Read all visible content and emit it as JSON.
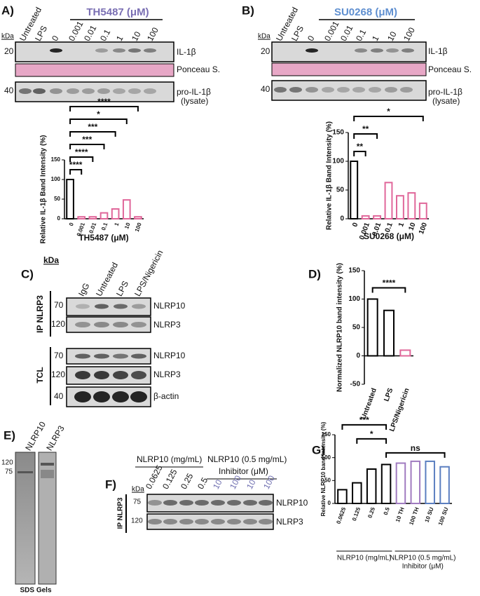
{
  "panels": {
    "a": "A)",
    "b": "B)",
    "c": "C)",
    "d": "D)",
    "e": "E)",
    "f": "F)",
    "g": "G)"
  },
  "blot_a": {
    "title": "TH5487 (μM)",
    "title_color": "#7a6fb3",
    "lanes": [
      "Untreated",
      "LPS",
      "0",
      "0.001",
      "0.01",
      "0.1",
      "1",
      "10",
      "100"
    ],
    "kda": "kDa",
    "markers": [
      "20",
      "40"
    ],
    "labels": [
      "IL-1β",
      "Ponceau S.",
      "pro-IL-1β",
      "(lysate)"
    ]
  },
  "blot_b": {
    "title": "SU0268 (μM)",
    "title_color": "#5f8fd0",
    "lanes": [
      "Untreated",
      "LPS",
      "0",
      "0.001",
      "0.01",
      "0.1",
      "1",
      "10",
      "100"
    ],
    "kda": "kDa",
    "markers": [
      "20",
      "40"
    ],
    "labels": [
      "IL-1β",
      "Ponceau S.",
      "pro-IL-1β",
      "(lysate)"
    ]
  },
  "blot_c": {
    "lanes": [
      "IgG",
      "Untreated",
      "LPS",
      "LPS/Nigericin"
    ],
    "kda": "kDa",
    "ip": "IP NLRP3",
    "tcl": "TCL",
    "markers": [
      "70",
      "120",
      "70",
      "120",
      "40"
    ],
    "labels": [
      "NLRP10",
      "NLRP3",
      "NLRP10",
      "NLRP3",
      "β-actin"
    ]
  },
  "gel_e": {
    "lanes": [
      "NLRP10",
      "NLRP3"
    ],
    "markers": [
      "120",
      "75"
    ],
    "caption": "SDS Gels"
  },
  "blot_f": {
    "groups": [
      "NLRP10 (mg/mL)",
      "NLRP10 (0.5 mg/mL)",
      "Inhibitor (μM)"
    ],
    "lanes": [
      "0.0625",
      "0.125",
      "0.25",
      "0.5",
      "10",
      "100",
      "10",
      "100"
    ],
    "lane_colors": [
      "#111",
      "#111",
      "#111",
      "#111",
      "#6f6fb0",
      "#6f6fb0",
      "#6f6fb0",
      "#6f6fb0"
    ],
    "kda": "kDa",
    "markers": [
      "75",
      "120"
    ],
    "labels": [
      "NLRP10",
      "NLRP3"
    ],
    "ip": "IP NLRP3"
  },
  "chart_data": [
    {
      "type": "bar",
      "y_label": "Relative IL-1β  Band Intensity (%)",
      "x_label": "TH5487 (μM)",
      "categories": [
        "0",
        "0.001",
        "0.01",
        "0.1",
        "1",
        "10",
        "100"
      ],
      "values": [
        100,
        5,
        5,
        15,
        25,
        48,
        5
      ],
      "colors": [
        "#000",
        "#e0679a",
        "#e0679a",
        "#e0679a",
        "#e0679a",
        "#e0679a",
        "#e0679a"
      ],
      "ylim": [
        0,
        150
      ],
      "yticks": [
        0,
        50,
        100,
        150
      ],
      "significance": [
        {
          "label": "****",
          "from": "0",
          "to": "0.001"
        },
        {
          "label": "****",
          "from": "0",
          "to": "0.01"
        },
        {
          "label": "***",
          "from": "0",
          "to": "0.1"
        },
        {
          "label": "***",
          "from": "0",
          "to": "1"
        },
        {
          "label": "*",
          "from": "0",
          "to": "10"
        },
        {
          "label": "****",
          "from": "0",
          "to": "100"
        }
      ]
    },
    {
      "type": "bar",
      "y_label": "Relative IL-1β Band Intensity (%)",
      "x_label": "SU0268 (μM)",
      "categories": [
        "0",
        "0.001",
        "0.01",
        "0.1",
        "1",
        "10",
        "100"
      ],
      "values": [
        100,
        5,
        5,
        63,
        40,
        45,
        27
      ],
      "colors": [
        "#000",
        "#e0679a",
        "#e0679a",
        "#e0679a",
        "#e0679a",
        "#e0679a",
        "#e0679a"
      ],
      "ylim": [
        0,
        150
      ],
      "yticks": [
        0,
        50,
        100,
        150
      ],
      "significance": [
        {
          "label": "**",
          "from": "0",
          "to": "0.001"
        },
        {
          "label": "**",
          "from": "0",
          "to": "0.01"
        },
        {
          "label": "*",
          "from": "0",
          "to": "100"
        }
      ]
    },
    {
      "type": "bar",
      "y_label": "Normalized NLRP10 band intensity (%)",
      "categories": [
        "Untreated",
        "LPS",
        "LPS/Nigericin"
      ],
      "values": [
        100,
        80,
        10
      ],
      "colors": [
        "#000",
        "#000",
        "#e0679a"
      ],
      "ylim": [
        -50,
        150
      ],
      "yticks": [
        -50,
        0,
        50,
        100,
        150
      ],
      "significance": [
        {
          "label": "****",
          "from": "Untreated",
          "to": "LPS/Nigericin"
        }
      ]
    },
    {
      "type": "bar",
      "y_label": "Relative NLRP10 band intensity (%)",
      "categories": [
        "0.0625",
        "0.125",
        "0.25",
        "0.5",
        "10 TH",
        "100 TH",
        "10 SU",
        "100 SU"
      ],
      "values": [
        30,
        45,
        75,
        85,
        88,
        92,
        92,
        80
      ],
      "colors": [
        "#000",
        "#000",
        "#000",
        "#000",
        "#a07bc0",
        "#a07bc0",
        "#5b7fc0",
        "#5b7fc0"
      ],
      "ylim": [
        0,
        150
      ],
      "yticks": [
        0,
        50,
        100,
        150
      ],
      "significance": [
        {
          "label": "ns",
          "from": "0.5",
          "to": "100 SU"
        },
        {
          "label": "*",
          "from": "0.125",
          "to": "0.5"
        },
        {
          "label": "***",
          "from": "0.0625",
          "to": "0.5"
        }
      ],
      "x_groups": [
        {
          "labels": [
            "NLRP10 (mg/mL)"
          ],
          "from": "0.0625",
          "to": "0.5"
        },
        {
          "labels": [
            "NLRP10 (0.5 mg/mL)",
            "Inhibitor (μM)"
          ],
          "from": "10 TH",
          "to": "100 SU"
        }
      ]
    }
  ]
}
